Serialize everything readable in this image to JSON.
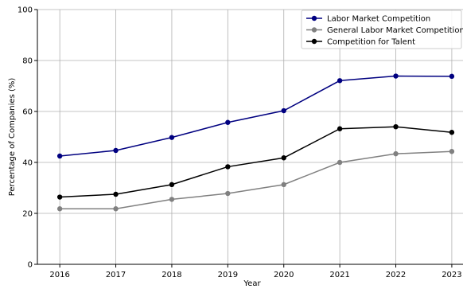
{
  "chart_data": {
    "type": "line",
    "title": "",
    "xlabel": "Year",
    "ylabel": "Percentage of Companies (%)",
    "x": [
      2016,
      2017,
      2018,
      2019,
      2020,
      2021,
      2022,
      2023
    ],
    "xlim": [
      2015.6,
      2023.2
    ],
    "ylim": [
      0,
      100
    ],
    "yticks": [
      0,
      20,
      40,
      60,
      80,
      100
    ],
    "grid": true,
    "legend_position": "top-right",
    "series": [
      {
        "name": "Labor Market Competition",
        "color": "#000080",
        "values": [
          42.5,
          44.7,
          49.8,
          55.7,
          60.3,
          72.1,
          73.9,
          73.8
        ]
      },
      {
        "name": "General Labor Market Competition",
        "color": "#808080",
        "values": [
          21.8,
          21.8,
          25.5,
          27.8,
          31.3,
          40.0,
          43.4,
          44.3
        ]
      },
      {
        "name": "Competition for Talent",
        "color": "#000000",
        "values": [
          26.4,
          27.5,
          31.3,
          38.3,
          41.8,
          53.2,
          54.0,
          51.8
        ]
      }
    ]
  }
}
